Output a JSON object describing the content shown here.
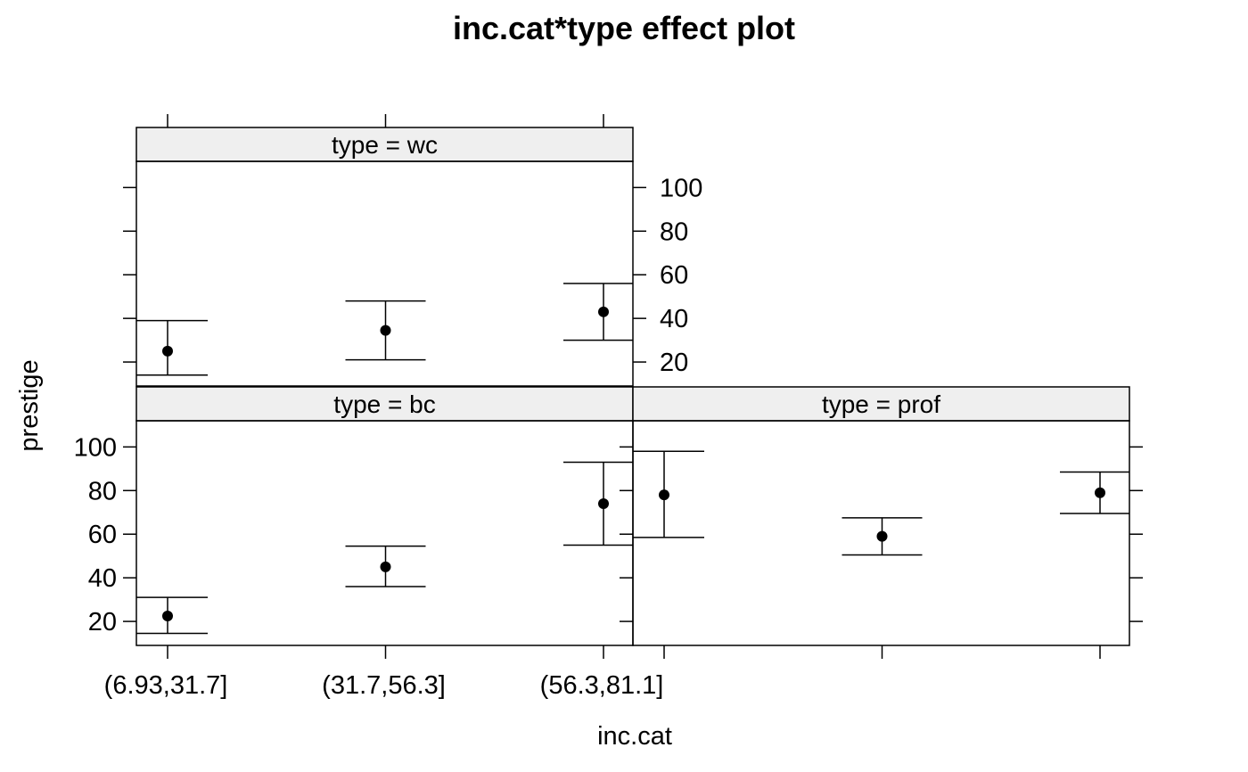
{
  "chart_data": {
    "type": "scatter",
    "title": "inc.cat*type effect plot",
    "xlabel": "inc.cat",
    "ylabel": "prestige",
    "categories": [
      "(6.93,31.7]",
      "(31.7,56.3]",
      "(56.3,81.1]"
    ],
    "ylim": [
      9,
      112
    ],
    "yticks": [
      20,
      40,
      60,
      80,
      100
    ],
    "grid": false,
    "panels": [
      {
        "strip": "type = wc",
        "points": [
          {
            "category": "(6.93,31.7]",
            "estimate": 25,
            "lower": 14,
            "upper": 39
          },
          {
            "category": "(31.7,56.3]",
            "estimate": 34.5,
            "lower": 21,
            "upper": 48
          },
          {
            "category": "(56.3,81.1]",
            "estimate": 43,
            "lower": 30,
            "upper": 56
          }
        ]
      },
      {
        "strip": "type = bc",
        "points": [
          {
            "category": "(6.93,31.7]",
            "estimate": 22.5,
            "lower": 14.5,
            "upper": 31
          },
          {
            "category": "(31.7,56.3]",
            "estimate": 45,
            "lower": 36,
            "upper": 54.5
          },
          {
            "category": "(56.3,81.1]",
            "estimate": 74,
            "lower": 55,
            "upper": 93
          }
        ]
      },
      {
        "strip": "type = prof",
        "points": [
          {
            "category": "(6.93,31.7]",
            "estimate": 78,
            "lower": 58.5,
            "upper": 98
          },
          {
            "category": "(31.7,56.3]",
            "estimate": 59,
            "lower": 50.5,
            "upper": 67.5
          },
          {
            "category": "(56.3,81.1]",
            "estimate": 79,
            "lower": 69.5,
            "upper": 88.5
          }
        ]
      }
    ],
    "colors": {
      "strip_bg": "#efefef",
      "ink": "#000000"
    }
  }
}
